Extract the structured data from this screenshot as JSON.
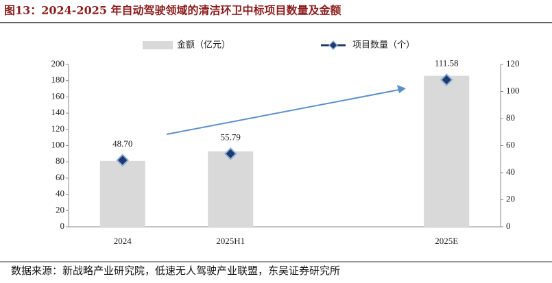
{
  "chart_data": {
    "type": "bar",
    "title": "图13：2024-2025 年自动驾驶领域的清洁环卫中标项目数量及金额",
    "source": "数据来源：新战略产业研究院，低速无人驾驶产业联盟，东吴证券研究所",
    "categories": [
      "2024",
      "2025H1",
      null,
      "2025E"
    ],
    "series": [
      {
        "name": "金额（亿元）",
        "type": "bar",
        "axis": "y2",
        "color": "#d9d9d9",
        "values": [
          48.7,
          55.79,
          null,
          111.58
        ],
        "value_labels": [
          "48.70",
          "55.79",
          null,
          "111.58"
        ]
      },
      {
        "name": "项目数量（个）",
        "type": "marker",
        "axis": "y",
        "color": "#1f3a6e",
        "values": [
          82,
          90,
          null,
          181
        ]
      }
    ],
    "ylim": [
      0,
      200
    ],
    "yticks": [
      0,
      20,
      40,
      60,
      80,
      100,
      120,
      140,
      160,
      180,
      200
    ],
    "y2lim": [
      0,
      120
    ],
    "y2ticks": [
      0,
      20,
      40,
      60,
      80,
      100,
      120
    ]
  }
}
